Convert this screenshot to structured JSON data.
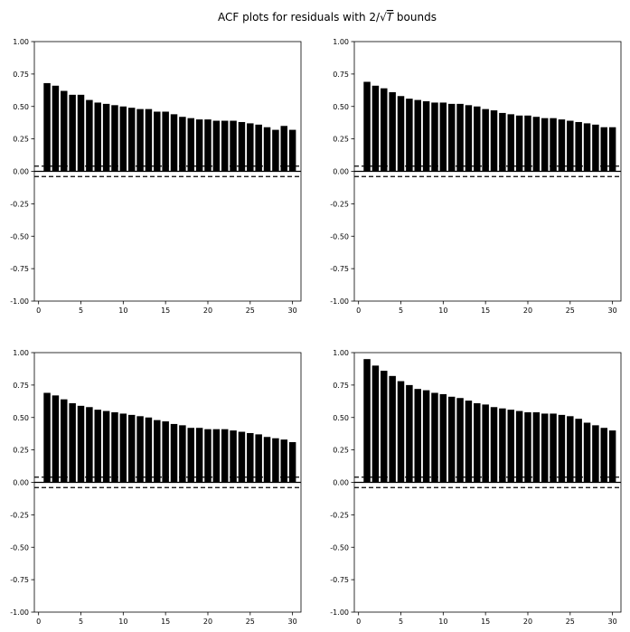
{
  "figure": {
    "title_prefix": "ACF plots for residuals with 2/",
    "title_radicand": "T",
    "title_suffix": " bounds"
  },
  "chart_data": [
    {
      "type": "bar",
      "x": [
        1,
        2,
        3,
        4,
        5,
        6,
        7,
        8,
        9,
        10,
        11,
        12,
        13,
        14,
        15,
        16,
        17,
        18,
        19,
        20,
        21,
        22,
        23,
        24,
        25,
        26,
        27,
        28,
        29,
        30
      ],
      "values": [
        0.68,
        0.66,
        0.62,
        0.59,
        0.59,
        0.55,
        0.53,
        0.52,
        0.51,
        0.5,
        0.49,
        0.48,
        0.48,
        0.46,
        0.46,
        0.44,
        0.42,
        0.41,
        0.4,
        0.4,
        0.39,
        0.39,
        0.39,
        0.38,
        0.37,
        0.36,
        0.34,
        0.32,
        0.35,
        0.32
      ],
      "bounds": [
        0.04,
        -0.04
      ],
      "xlim": [
        -0.5,
        31.0
      ],
      "ylim": [
        -1.0,
        1.0
      ],
      "xticks": [
        0,
        5,
        10,
        15,
        20,
        25,
        30
      ],
      "yticks": [
        "-1.00",
        "-0.75",
        "-0.50",
        "-0.25",
        "0.00",
        "0.25",
        "0.50",
        "0.75",
        "1.00"
      ],
      "colors": {
        "bar": "#000000",
        "bound": "#000000",
        "zero_line": "#000000"
      }
    },
    {
      "type": "bar",
      "x": [
        1,
        2,
        3,
        4,
        5,
        6,
        7,
        8,
        9,
        10,
        11,
        12,
        13,
        14,
        15,
        16,
        17,
        18,
        19,
        20,
        21,
        22,
        23,
        24,
        25,
        26,
        27,
        28,
        29,
        30
      ],
      "values": [
        0.69,
        0.66,
        0.64,
        0.61,
        0.58,
        0.56,
        0.55,
        0.54,
        0.53,
        0.53,
        0.52,
        0.52,
        0.51,
        0.5,
        0.48,
        0.47,
        0.45,
        0.44,
        0.43,
        0.43,
        0.42,
        0.41,
        0.41,
        0.4,
        0.39,
        0.38,
        0.37,
        0.36,
        0.34,
        0.34
      ],
      "bounds": [
        0.04,
        -0.04
      ],
      "xlim": [
        -0.5,
        31.0
      ],
      "ylim": [
        -1.0,
        1.0
      ],
      "xticks": [
        0,
        5,
        10,
        15,
        20,
        25,
        30
      ],
      "yticks": [
        "-1.00",
        "-0.75",
        "-0.50",
        "-0.25",
        "0.00",
        "0.25",
        "0.50",
        "0.75",
        "1.00"
      ],
      "colors": {
        "bar": "#000000",
        "bound": "#000000",
        "zero_line": "#000000"
      }
    },
    {
      "type": "bar",
      "x": [
        1,
        2,
        3,
        4,
        5,
        6,
        7,
        8,
        9,
        10,
        11,
        12,
        13,
        14,
        15,
        16,
        17,
        18,
        19,
        20,
        21,
        22,
        23,
        24,
        25,
        26,
        27,
        28,
        29,
        30
      ],
      "values": [
        0.69,
        0.67,
        0.64,
        0.61,
        0.59,
        0.58,
        0.56,
        0.55,
        0.54,
        0.53,
        0.52,
        0.51,
        0.5,
        0.48,
        0.47,
        0.45,
        0.44,
        0.42,
        0.42,
        0.41,
        0.41,
        0.41,
        0.4,
        0.39,
        0.38,
        0.37,
        0.35,
        0.34,
        0.33,
        0.31
      ],
      "bounds": [
        0.04,
        -0.04
      ],
      "xlim": [
        -0.5,
        31.0
      ],
      "ylim": [
        -1.0,
        1.0
      ],
      "xticks": [
        0,
        5,
        10,
        15,
        20,
        25,
        30
      ],
      "yticks": [
        "-1.00",
        "-0.75",
        "-0.50",
        "-0.25",
        "0.00",
        "0.25",
        "0.50",
        "0.75",
        "1.00"
      ],
      "colors": {
        "bar": "#000000",
        "bound": "#000000",
        "zero_line": "#000000"
      }
    },
    {
      "type": "bar",
      "x": [
        1,
        2,
        3,
        4,
        5,
        6,
        7,
        8,
        9,
        10,
        11,
        12,
        13,
        14,
        15,
        16,
        17,
        18,
        19,
        20,
        21,
        22,
        23,
        24,
        25,
        26,
        27,
        28,
        29,
        30
      ],
      "values": [
        0.95,
        0.9,
        0.86,
        0.82,
        0.78,
        0.75,
        0.72,
        0.71,
        0.69,
        0.68,
        0.66,
        0.65,
        0.63,
        0.61,
        0.6,
        0.58,
        0.57,
        0.56,
        0.55,
        0.54,
        0.54,
        0.53,
        0.53,
        0.52,
        0.51,
        0.49,
        0.46,
        0.44,
        0.42,
        0.4
      ],
      "bounds": [
        0.04,
        -0.04
      ],
      "xlim": [
        -0.5,
        31.0
      ],
      "ylim": [
        -1.0,
        1.0
      ],
      "xticks": [
        0,
        5,
        10,
        15,
        20,
        25,
        30
      ],
      "yticks": [
        "-1.00",
        "-0.75",
        "-0.50",
        "-0.25",
        "0.00",
        "0.25",
        "0.50",
        "0.75",
        "1.00"
      ],
      "colors": {
        "bar": "#000000",
        "bound": "#000000",
        "zero_line": "#000000"
      }
    }
  ]
}
